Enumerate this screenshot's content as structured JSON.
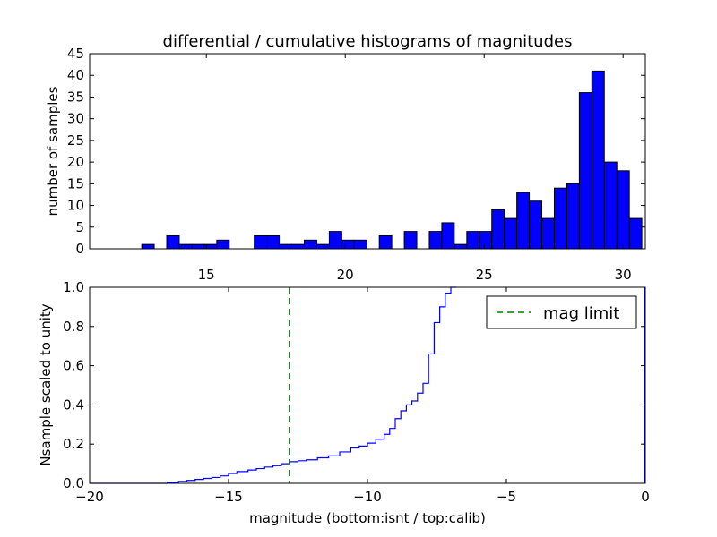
{
  "chart_data": [
    {
      "type": "bar",
      "title": "differential / cumulative histograms of magnitudes",
      "xlabel": "",
      "ylabel": "number of samples",
      "xlim": [
        10.8,
        30.8
      ],
      "ylim": [
        0,
        45
      ],
      "xticks": [
        15,
        20,
        25,
        30
      ],
      "yticks": [
        0,
        5,
        10,
        15,
        20,
        25,
        30,
        35,
        40,
        45
      ],
      "bin_width": 0.45,
      "bar_color": "#0000ff",
      "bins": [
        {
          "x": 12.9,
          "value": 1
        },
        {
          "x": 13.8,
          "value": 3
        },
        {
          "x": 14.25,
          "value": 1
        },
        {
          "x": 14.7,
          "value": 1
        },
        {
          "x": 15.15,
          "value": 1
        },
        {
          "x": 15.6,
          "value": 2
        },
        {
          "x": 16.95,
          "value": 3
        },
        {
          "x": 17.4,
          "value": 3
        },
        {
          "x": 17.85,
          "value": 1
        },
        {
          "x": 18.3,
          "value": 1
        },
        {
          "x": 18.75,
          "value": 2
        },
        {
          "x": 19.2,
          "value": 1
        },
        {
          "x": 19.65,
          "value": 4
        },
        {
          "x": 20.1,
          "value": 2
        },
        {
          "x": 20.55,
          "value": 2
        },
        {
          "x": 21.45,
          "value": 3
        },
        {
          "x": 22.35,
          "value": 4
        },
        {
          "x": 23.25,
          "value": 4
        },
        {
          "x": 23.7,
          "value": 6
        },
        {
          "x": 24.15,
          "value": 1
        },
        {
          "x": 24.6,
          "value": 4
        },
        {
          "x": 25.05,
          "value": 4
        },
        {
          "x": 25.5,
          "value": 9
        },
        {
          "x": 25.95,
          "value": 7
        },
        {
          "x": 26.4,
          "value": 13
        },
        {
          "x": 26.85,
          "value": 11
        },
        {
          "x": 27.3,
          "value": 7
        },
        {
          "x": 27.75,
          "value": 14
        },
        {
          "x": 28.2,
          "value": 15
        },
        {
          "x": 28.65,
          "value": 36
        },
        {
          "x": 29.1,
          "value": 41
        },
        {
          "x": 29.55,
          "value": 20
        },
        {
          "x": 30.0,
          "value": 18
        },
        {
          "x": 30.45,
          "value": 7
        }
      ]
    },
    {
      "type": "line",
      "xlabel": "magnitude (bottom:isnt / top:calib)",
      "ylabel": "Nsample scaled to unity",
      "xlim": [
        -20,
        0
      ],
      "ylim": [
        0,
        1
      ],
      "xticks": [
        -20,
        -15,
        -10,
        -5,
        0
      ],
      "yticks": [
        0.0,
        0.2,
        0.4,
        0.6,
        0.8,
        1.0
      ],
      "ytick_labels": [
        "0.0",
        "0.2",
        "0.4",
        "0.6",
        "0.8",
        "1.0"
      ],
      "legend_position": "upper-right",
      "series": [
        {
          "style": "step",
          "color": "#0000ff",
          "x": [
            -20.0,
            -17.2,
            -16.8,
            -16.5,
            -16.2,
            -15.9,
            -15.6,
            -15.3,
            -15.0,
            -14.7,
            -14.3,
            -14.0,
            -13.7,
            -13.4,
            -13.1,
            -12.8,
            -12.5,
            -12.2,
            -11.8,
            -11.4,
            -11.0,
            -10.6,
            -10.3,
            -10.0,
            -9.7,
            -9.4,
            -9.2,
            -9.0,
            -8.8,
            -8.6,
            -8.4,
            -8.2,
            -8.0,
            -7.8,
            -7.6,
            -7.4,
            -7.2,
            -7.0
          ],
          "y": [
            0.0,
            0.005,
            0.01,
            0.015,
            0.02,
            0.025,
            0.03,
            0.038,
            0.05,
            0.06,
            0.068,
            0.075,
            0.083,
            0.09,
            0.1,
            0.11,
            0.115,
            0.12,
            0.13,
            0.14,
            0.16,
            0.18,
            0.19,
            0.205,
            0.225,
            0.25,
            0.28,
            0.33,
            0.37,
            0.4,
            0.42,
            0.46,
            0.51,
            0.66,
            0.82,
            0.9,
            0.97,
            1.0
          ]
        },
        {
          "name": "mag limit",
          "style": "dashed-vertical",
          "color": "#008000",
          "x": -12.8
        }
      ]
    }
  ]
}
